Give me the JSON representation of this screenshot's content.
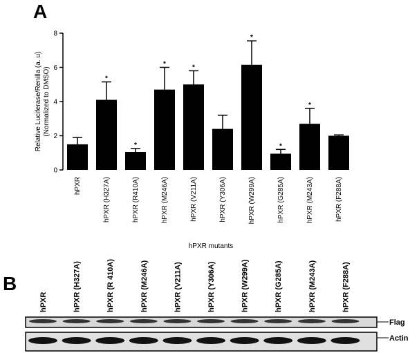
{
  "panels": [
    "A",
    "B"
  ],
  "chart_data": {
    "type": "bar",
    "y_label": [
      "Relative Luciferase/Renilla (a. u)",
      "(Normalized to DMSO)"
    ],
    "x_label": "hPXR mutants",
    "categories": [
      "hPXR",
      "hPXR (H327A)",
      "hPXR (R410A)",
      "hPXR (M246A)",
      "hPXR (V211A)",
      "hPXR (Y306A)",
      "hPXR (W299A)",
      "hPXR (G285A)",
      "hPXR (M243A)",
      "hPXR (F288A)"
    ],
    "values": [
      1.5,
      4.1,
      1.05,
      4.7,
      5.0,
      2.4,
      6.15,
      0.95,
      2.7,
      2.0
    ],
    "errors": [
      0.4,
      1.05,
      0.2,
      1.3,
      0.8,
      0.8,
      1.4,
      0.25,
      0.9,
      0.05
    ],
    "significance": [
      null,
      "*",
      "*",
      "*",
      "*",
      null,
      "*",
      "*",
      "*",
      null
    ],
    "color": "#000000",
    "ylim": [
      0,
      8
    ],
    "yticks": [
      0,
      2,
      4,
      6,
      8
    ]
  },
  "blot": {
    "lanes": [
      "hPXR",
      "hPXR (H327A)",
      "hPXR (R 410A)",
      "hPXR (M246A)",
      "hPXR (V211A)",
      "hPXR (Y306A)",
      "hPXR (W299A)",
      "hPXR (G285A)",
      "hPXR (M243A)",
      "hPXR (F288A)"
    ],
    "bands": [
      "Flag",
      "Actin"
    ]
  }
}
